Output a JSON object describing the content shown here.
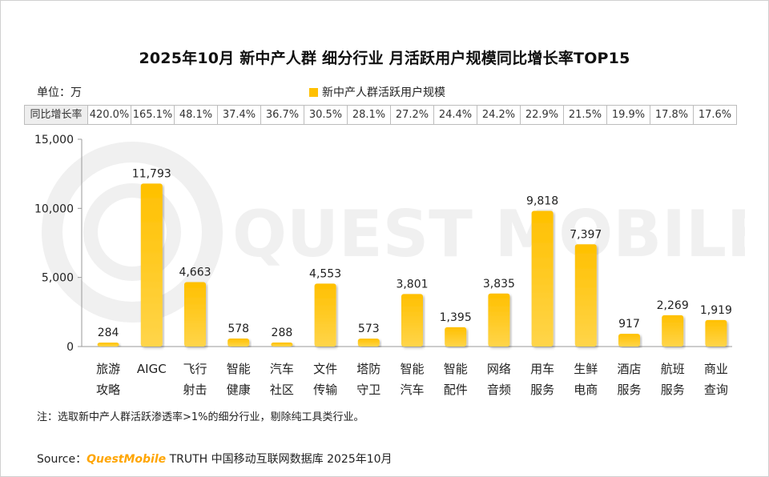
{
  "title": "2025年10月 新中产人群 细分行业 月活跃用户规模同比增长率TOP15",
  "unit_label": "单位：万",
  "legend_label": "新中产人群活跃用户规模",
  "growth_header": "同比增长率",
  "growth_rates": [
    "420.0%",
    "165.1%",
    "48.1%",
    "37.4%",
    "36.7%",
    "30.5%",
    "28.1%",
    "27.2%",
    "24.4%",
    "24.2%",
    "22.9%",
    "21.5%",
    "19.9%",
    "17.8%",
    "17.6%"
  ],
  "watermark": "QUEST MOBILE",
  "footnote": "注：选取新中产人群活跃渗透率>1%的细分行业，剔除纯工具类行业。",
  "source": {
    "prefix": "Source：",
    "brand": "QuestMobile",
    "rest": " TRUTH 中国移动互联网数据库 2025年10月"
  },
  "colors": {
    "bar": "#FFC000",
    "bar_light": "#FFD54A",
    "axis": "#999999"
  },
  "chart_data": {
    "type": "bar",
    "title": "2025年10月 新中产人群 细分行业 月活跃用户规模同比增长率TOP15",
    "categories": [
      [
        "旅游",
        "攻略"
      ],
      [
        "AIGC"
      ],
      [
        "飞行",
        "射击"
      ],
      [
        "智能",
        "健康"
      ],
      [
        "汽车",
        "社区"
      ],
      [
        "文件",
        "传输"
      ],
      [
        "塔防",
        "守卫"
      ],
      [
        "智能",
        "汽车"
      ],
      [
        "智能",
        "配件"
      ],
      [
        "网络",
        "音频"
      ],
      [
        "用车",
        "服务"
      ],
      [
        "生鲜",
        "电商"
      ],
      [
        "酒店",
        "服务"
      ],
      [
        "航班",
        "服务"
      ],
      [
        "商业",
        "查询"
      ]
    ],
    "series": [
      {
        "name": "新中产人群活跃用户规模",
        "values": [
          284,
          11793,
          4663,
          578,
          288,
          4553,
          573,
          3801,
          1395,
          3835,
          9818,
          7397,
          917,
          2269,
          1919
        ]
      }
    ],
    "data_labels": [
      "284",
      "11,793",
      "4,663",
      "578",
      "288",
      "4,553",
      "573",
      "3,801",
      "1,395",
      "3,835",
      "9,818",
      "7,397",
      "917",
      "2,269",
      "1,919"
    ],
    "yticks": [
      "0",
      "5,000",
      "10,000",
      "15,000"
    ],
    "ytick_values": [
      0,
      5000,
      10000,
      15000
    ],
    "ylim": [
      0,
      15000
    ],
    "xlabel": "",
    "ylabel": "",
    "legend": "top-center"
  }
}
